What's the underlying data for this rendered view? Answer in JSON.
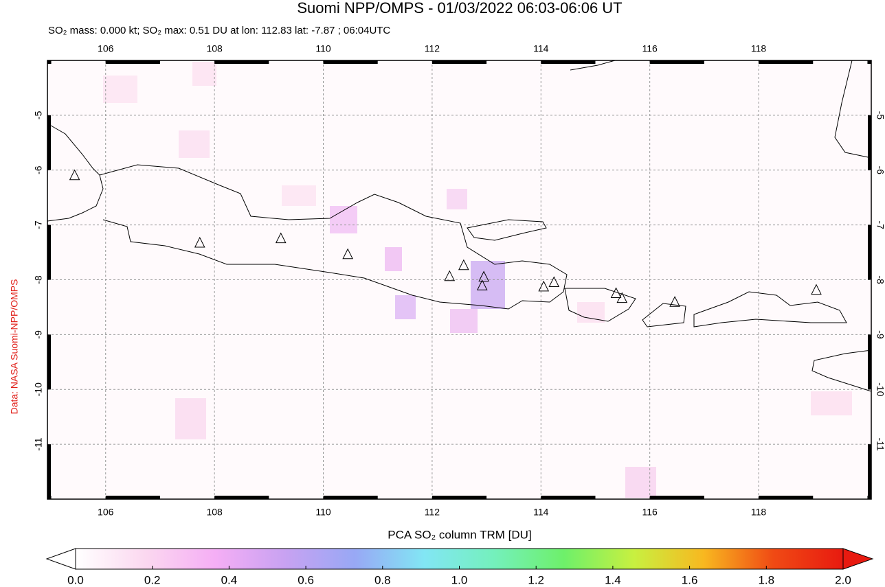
{
  "map": {
    "type": "map",
    "title": "Suomi NPP/OMPS - 01/03/2022 06:03-06:06 UT",
    "subtitle": "SO₂ mass: 0.000 kt; SO₂ max: 0.51 DU at lon: 112.83 lat: -7.87 ; 06:04UTC",
    "credit": "Data: NASA Suomi-NPP/OMPS",
    "xlim": [
      104.93,
      120.07
    ],
    "ylim": [
      -12,
      -4
    ],
    "xticks": [
      106,
      108,
      110,
      112,
      114,
      116,
      118
    ],
    "yticks": [
      -5,
      -6,
      -7,
      -8,
      -9,
      -10,
      -11
    ],
    "grid": true,
    "volcanoes": {
      "lon": [
        105.43,
        107.73,
        109.22,
        110.45,
        112.32,
        112.58,
        112.95,
        112.92,
        114.05,
        114.24,
        115.38,
        115.49,
        116.46,
        119.06
      ],
      "lat": [
        -6.1,
        -7.33,
        -7.25,
        -7.54,
        -7.94,
        -7.74,
        -7.95,
        -8.11,
        -8.13,
        -8.05,
        -8.25,
        -8.34,
        -8.41,
        -8.19
      ]
    }
  },
  "colorbar": {
    "label": "PCA SO₂ column TRM [DU]",
    "lim": [
      0,
      2
    ],
    "colors": [
      "#ffffff",
      "#fbd8f0",
      "#f5aef5",
      "#c8a2f2",
      "#98a8f5",
      "#82e6f4",
      "#74f0bc",
      "#6ef06a",
      "#c8f040",
      "#f8b820",
      "#f04a14",
      "#e81a10"
    ],
    "ticks": [
      {
        "value": 0,
        "label": "0.0"
      },
      {
        "value": 0.2,
        "label": "0.2"
      },
      {
        "value": 0.4,
        "label": "0.4"
      },
      {
        "value": 0.6,
        "label": "0.6"
      },
      {
        "value": 0.8,
        "label": "0.8"
      },
      {
        "value": 1,
        "label": "1.0"
      },
      {
        "value": 1.2,
        "label": "1.2"
      },
      {
        "value": 1.4,
        "label": "1.4"
      },
      {
        "value": 1.6,
        "label": "1.6"
      },
      {
        "value": 1.8,
        "label": "1.8"
      },
      {
        "value": 2,
        "label": "2.0"
      }
    ]
  }
}
